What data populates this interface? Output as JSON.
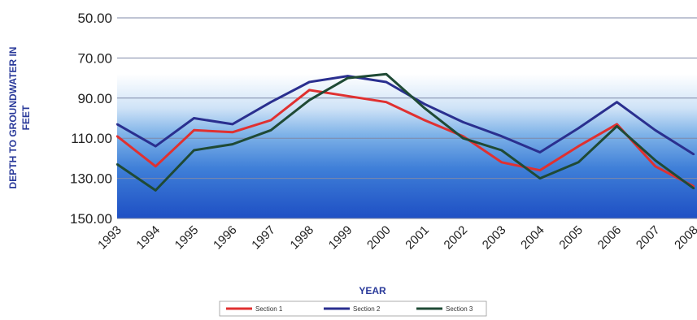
{
  "chart_data": {
    "type": "line",
    "title": "",
    "xlabel": "YEAR",
    "ylabel": "DEPTH TO GROUNDWATER IN FEET",
    "ylabel_lines": [
      "DEPTH TO GROUNDWATER IN",
      "FEET"
    ],
    "x": [
      "1993",
      "1994",
      "1995",
      "1996",
      "1997",
      "1998",
      "1999",
      "2000",
      "2001",
      "2002",
      "2003",
      "2004",
      "2005",
      "2006",
      "2007",
      "2008"
    ],
    "y_inverted": true,
    "ylim": [
      50,
      150
    ],
    "yticks": [
      "50.00",
      "70.00",
      "90.00",
      "110.00",
      "130.00",
      "150.00"
    ],
    "ytick_values": [
      50,
      70,
      90,
      110,
      130,
      150
    ],
    "grid": true,
    "legend_position": "bottom",
    "series": [
      {
        "name": "Section 1",
        "color": "#e03030",
        "values": [
          109,
          124,
          106,
          107,
          101,
          86,
          89,
          92,
          101,
          109,
          122,
          126,
          114,
          103,
          124,
          134
        ]
      },
      {
        "name": "Section 2",
        "color": "#2a2f8f",
        "values": [
          103,
          114,
          100,
          103,
          92,
          82,
          79,
          82,
          93,
          102,
          109,
          117,
          105,
          92,
          106,
          118
        ]
      },
      {
        "name": "Section 3",
        "color": "#1f4a35",
        "values": [
          123,
          136,
          116,
          113,
          106,
          91,
          80,
          78,
          95,
          110,
          116,
          130,
          122,
          104,
          121,
          135
        ]
      }
    ]
  }
}
